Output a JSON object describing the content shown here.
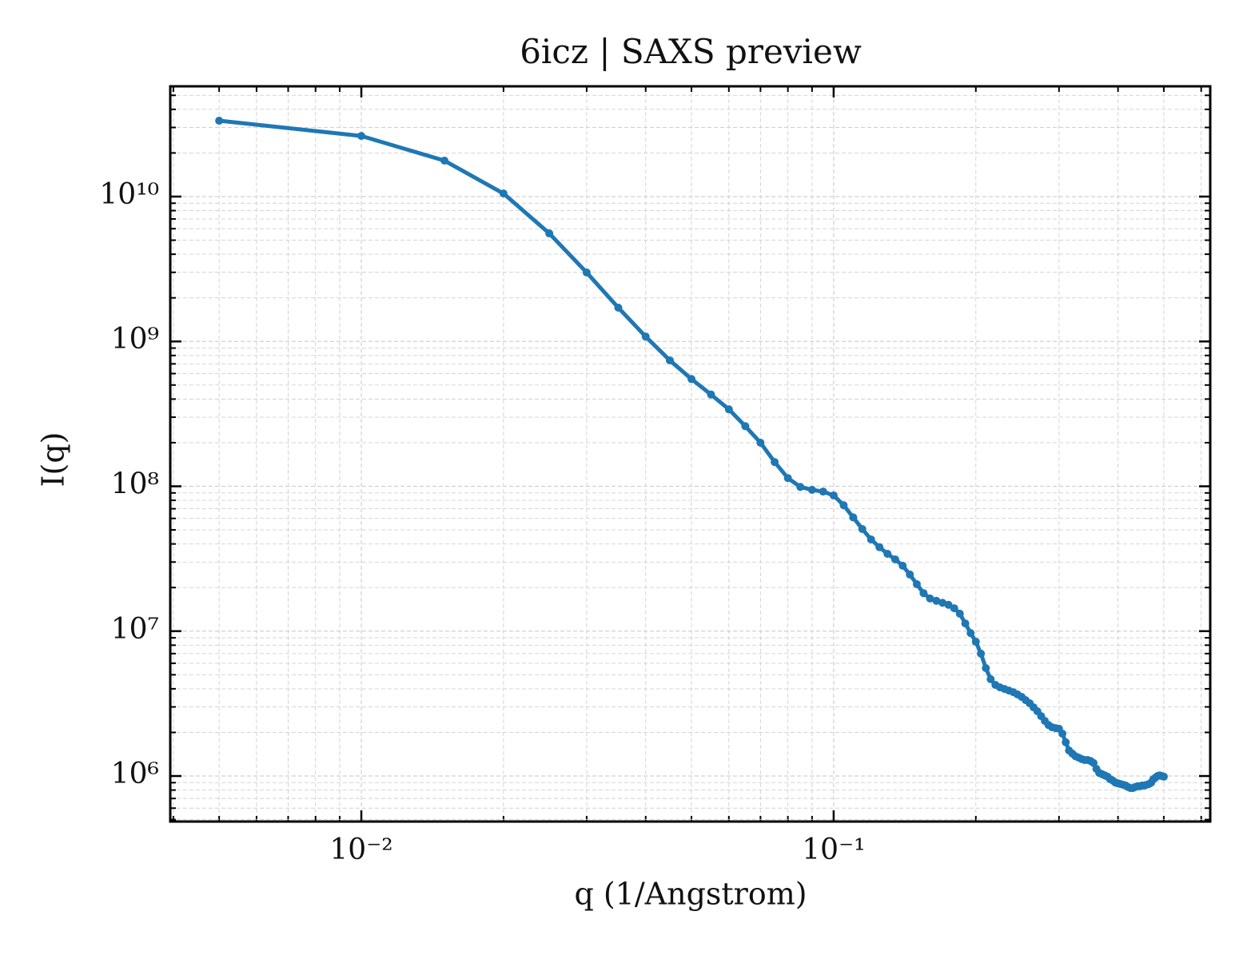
{
  "chart_data": {
    "type": "line",
    "title": "6icz | SAXS preview",
    "x_label": "q (1/Angstrom)",
    "y_label": "I(q)",
    "x_log": true,
    "y_log": true,
    "grid": true,
    "ticks_direction": "in",
    "xlim": [
      0.00394,
      0.627
    ],
    "ylim": [
      485000,
      57700000000
    ],
    "xticks": [
      {
        "value": 0.01,
        "label": "10⁻²"
      },
      {
        "value": 0.1,
        "label": "10⁻¹"
      }
    ],
    "yticks": [
      {
        "value": 1000000,
        "label": "10⁶"
      },
      {
        "value": 10000000,
        "label": "10⁷"
      },
      {
        "value": 100000000,
        "label": "10⁸"
      },
      {
        "value": 1000000000,
        "label": "10⁹"
      },
      {
        "value": 10000000000,
        "label": "10¹⁰"
      }
    ],
    "xminorticks": [
      0.004,
      0.005,
      0.006,
      0.007,
      0.008,
      0.009,
      0.02,
      0.03,
      0.04,
      0.05,
      0.06,
      0.07,
      0.08,
      0.09,
      0.2,
      0.3,
      0.4,
      0.5,
      0.6
    ],
    "yminorticks": [
      500000.0,
      600000.0,
      700000.0,
      800000.0,
      900000.0,
      2000000.0,
      3000000.0,
      4000000.0,
      5000000.0,
      6000000.0,
      7000000.0,
      8000000.0,
      9000000.0,
      20000000.0,
      30000000.0,
      40000000.0,
      50000000.0,
      60000000.0,
      70000000.0,
      80000000.0,
      90000000.0,
      200000000.0,
      300000000.0,
      400000000.0,
      500000000.0,
      600000000.0,
      700000000.0,
      800000000.0,
      900000000.0,
      2000000000.0,
      3000000000.0,
      4000000000.0,
      5000000000.0,
      6000000000.0,
      7000000000.0,
      8000000000.0,
      9000000000.0,
      20000000000.0,
      30000000000.0,
      40000000000.0,
      50000000000.0
    ],
    "x": [
      0.005,
      0.01,
      0.015,
      0.02,
      0.025,
      0.03,
      0.035,
      0.04,
      0.045,
      0.05,
      0.055,
      0.06,
      0.065,
      0.07,
      0.075,
      0.08,
      0.085,
      0.09,
      0.095,
      0.1,
      0.105,
      0.11,
      0.115,
      0.12,
      0.125,
      0.13,
      0.135,
      0.14,
      0.145,
      0.15,
      0.155,
      0.16,
      0.165,
      0.17,
      0.175,
      0.18,
      0.185,
      0.19,
      0.195,
      0.2,
      0.205,
      0.21,
      0.215,
      0.22,
      0.225,
      0.23,
      0.235,
      0.24,
      0.245,
      0.25,
      0.255,
      0.26,
      0.265,
      0.27,
      0.275,
      0.28,
      0.285,
      0.29,
      0.295,
      0.3,
      0.305,
      0.31,
      0.315,
      0.32,
      0.325,
      0.33,
      0.335,
      0.34,
      0.345,
      0.35,
      0.355,
      0.36,
      0.365,
      0.37,
      0.375,
      0.38,
      0.385,
      0.39,
      0.395,
      0.4,
      0.405,
      0.41,
      0.415,
      0.42,
      0.425,
      0.43,
      0.435,
      0.44,
      0.445,
      0.45,
      0.455,
      0.46,
      0.465,
      0.47,
      0.475,
      0.48,
      0.485,
      0.49,
      0.495,
      0.5
    ],
    "series": [
      {
        "color": "#1f77b4",
        "values": [
          33400000000.0,
          26200000000.0,
          17700000000.0,
          10500000000.0,
          5570000000.0,
          2990000000.0,
          1710000000.0,
          1080000000.0,
          740000000.0,
          550000000.0,
          430000000.0,
          340000000.0,
          260000000.0,
          200000000.0,
          147000000.0,
          114000000.0,
          99000000.0,
          94500000.0,
          92000000.0,
          86500000.0,
          74000000.0,
          61000000.0,
          50700000.0,
          43000000.0,
          38000000.0,
          34200000.0,
          31300000.0,
          28300000.0,
          24600000.0,
          21100000.0,
          18300000.0,
          16800000.0,
          16200000.0,
          15700000.0,
          15200000.0,
          14400000.0,
          13200000.0,
          11300000.0,
          9700000.0,
          8450000.0,
          7000000.0,
          5560000.0,
          4660000.0,
          4260000.0,
          4090000.0,
          3990000.0,
          3890000.0,
          3790000.0,
          3660000.0,
          3520000.0,
          3340000.0,
          3180000.0,
          2980000.0,
          2800000.0,
          2590000.0,
          2400000.0,
          2250000.0,
          2170000.0,
          2140000.0,
          2120000.0,
          1960000.0,
          1710000.0,
          1500000.0,
          1430000.0,
          1370000.0,
          1340000.0,
          1310000.0,
          1290000.0,
          1290000.0,
          1270000.0,
          1230000.0,
          1120000.0,
          1050000.0,
          1030000.0,
          1010000.0,
          990000.0,
          950000.0,
          930000.0,
          900000.0,
          890000.0,
          880000.0,
          870000.0,
          860000.0,
          840000.0,
          826000.0,
          826000.0,
          840000.0,
          850000.0,
          850000.0,
          860000.0,
          860000.0,
          870000.0,
          880000.0,
          900000.0,
          950000.0,
          975000.0,
          1000000.0,
          1010000.0,
          1000000.0,
          990000.0
        ]
      }
    ]
  }
}
